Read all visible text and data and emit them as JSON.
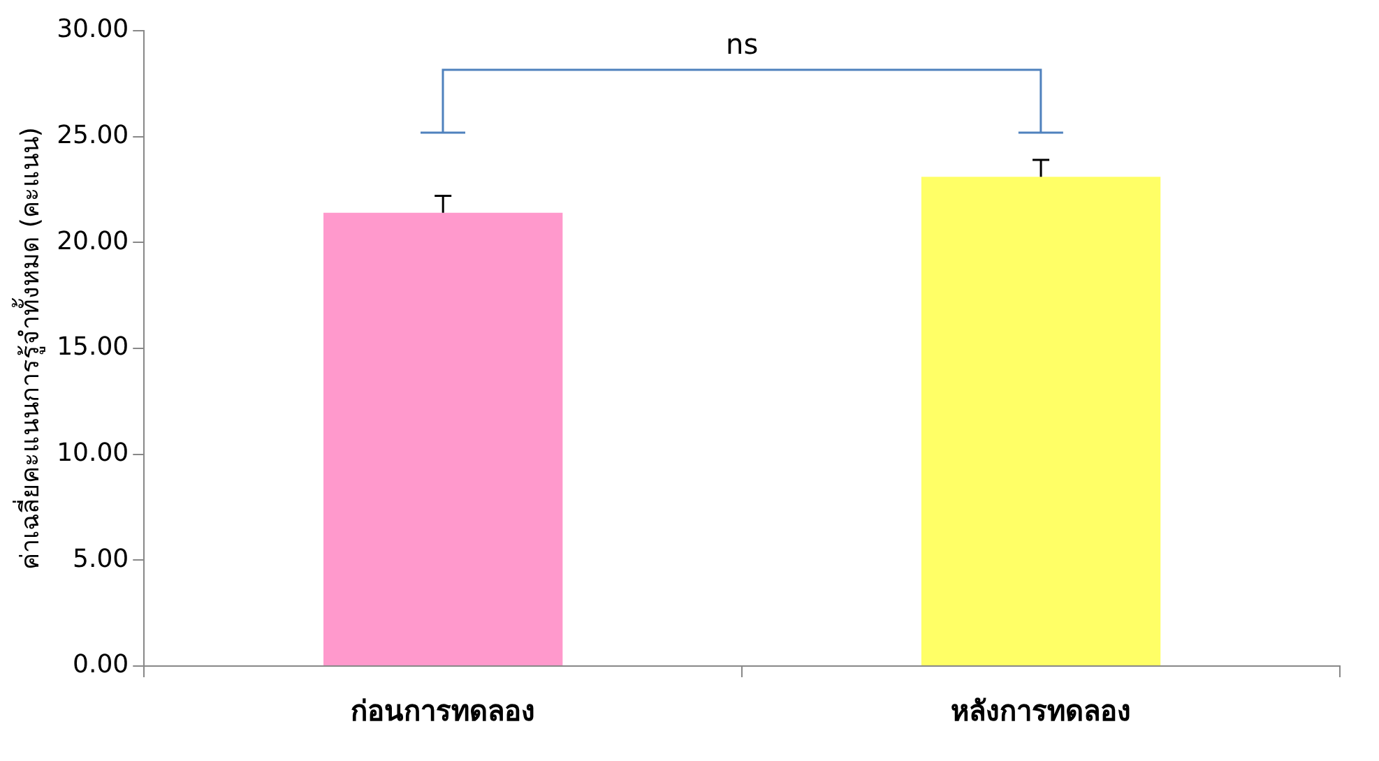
{
  "chart_data": {
    "type": "bar",
    "ylabel": "ค่าเฉลี่ยคะแนนการรู้จำทั้งหมด (คะแนน)",
    "categories": [
      "ก่อนการทดลอง",
      "หลังการทดลอง"
    ],
    "values": [
      21.4,
      23.1
    ],
    "colors": [
      "#ff99cc",
      "#ffff66"
    ],
    "errors": [
      [
        21.4,
        22.2
      ],
      [
        23.1,
        23.9
      ]
    ],
    "ylim": [
      0,
      30
    ],
    "yticks": [
      {
        "value": 0,
        "label": "0.00"
      },
      {
        "value": 5,
        "label": "5.00"
      },
      {
        "value": 10,
        "label": "10.00"
      },
      {
        "value": 15,
        "label": "15.00"
      },
      {
        "value": 20,
        "label": "20.00"
      },
      {
        "value": 25,
        "label": "25.00"
      },
      {
        "value": 30,
        "label": "30.00"
      }
    ],
    "annotations": [
      "ns"
    ],
    "grid": false,
    "legend": false
  }
}
